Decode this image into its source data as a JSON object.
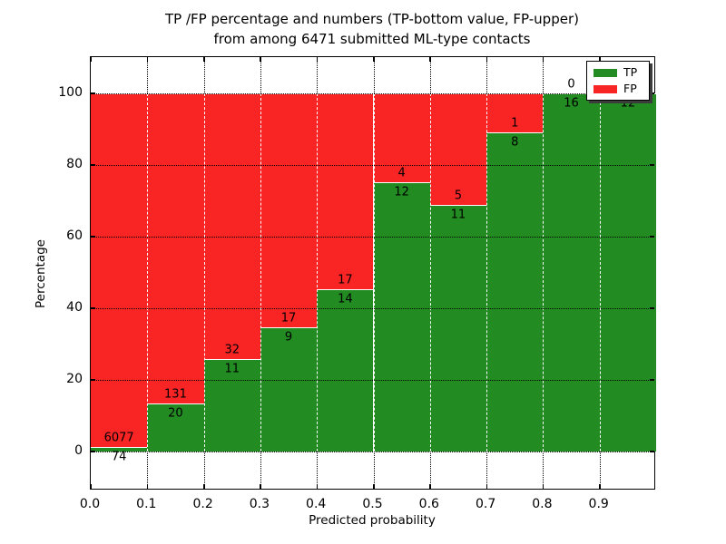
{
  "figure": {
    "title_line1": "TP /FP percentage and numbers (TP-bottom value, FP-upper)",
    "title_line2": "from among 6471 submitted ML-type contacts",
    "xlabel": "Predicted probability",
    "ylabel": "Percentage"
  },
  "colors": {
    "tp": "#228b22",
    "fp": "#f92525",
    "background": "#ffffff",
    "text": "#000000",
    "grid_over_bars_vertical": "#ffffff",
    "grid_dotted": "#000000"
  },
  "chart_data": {
    "type": "bar",
    "stacked": true,
    "normalized_to_percent": true,
    "title": "TP /FP percentage and numbers (TP-bottom value, FP-upper) from among 6471 submitted ML-type contacts",
    "xlabel": "Predicted probability",
    "ylabel": "Percentage",
    "total_contacts": 6471,
    "xlim": [
      0.0,
      1.0
    ],
    "ylim": [
      -11,
      110
    ],
    "bar_width": 0.1,
    "x_tick_labels": [
      "0.0",
      "0.1",
      "0.2",
      "0.3",
      "0.4",
      "0.5",
      "0.6",
      "0.7",
      "0.8",
      "0.9"
    ],
    "y_tick_values": [
      0,
      20,
      40,
      60,
      80,
      100
    ],
    "y_tick_labels": [
      "0",
      "20",
      "40",
      "60",
      "80",
      "100"
    ],
    "grid": true,
    "legend": {
      "position": "upper right",
      "entries": [
        {
          "label": "TP",
          "color": "#228b22"
        },
        {
          "label": "FP",
          "color": "#f92525"
        }
      ]
    },
    "series_note": "TP count shown below segment boundary, FP count above; bars stacked to 100%",
    "bins": [
      {
        "range": "0.0-0.1",
        "tp": 74,
        "fp": 6077,
        "tp_pct": 1.2,
        "fp_pct": 98.8
      },
      {
        "range": "0.1-0.2",
        "tp": 20,
        "fp": 131,
        "tp_pct": 13.25,
        "fp_pct": 86.75
      },
      {
        "range": "0.2-0.3",
        "tp": 11,
        "fp": 32,
        "tp_pct": 25.58,
        "fp_pct": 74.42
      },
      {
        "range": "0.3-0.4",
        "tp": 9,
        "fp": 17,
        "tp_pct": 34.62,
        "fp_pct": 65.38
      },
      {
        "range": "0.4-0.5",
        "tp": 14,
        "fp": 17,
        "tp_pct": 45.16,
        "fp_pct": 54.84
      },
      {
        "range": "0.5-0.6",
        "tp": 12,
        "fp": 4,
        "tp_pct": 75.0,
        "fp_pct": 25.0
      },
      {
        "range": "0.6-0.7",
        "tp": 11,
        "fp": 5,
        "tp_pct": 68.75,
        "fp_pct": 31.25
      },
      {
        "range": "0.7-0.8",
        "tp": 8,
        "fp": 1,
        "tp_pct": 88.89,
        "fp_pct": 11.11
      },
      {
        "range": "0.8-0.9",
        "tp": 16,
        "fp": 0,
        "tp_pct": 100.0,
        "fp_pct": 0.0
      },
      {
        "range": "0.9-1.0",
        "tp": 12,
        "fp": 0,
        "tp_pct": 100.0,
        "fp_pct": 0.0
      }
    ]
  }
}
